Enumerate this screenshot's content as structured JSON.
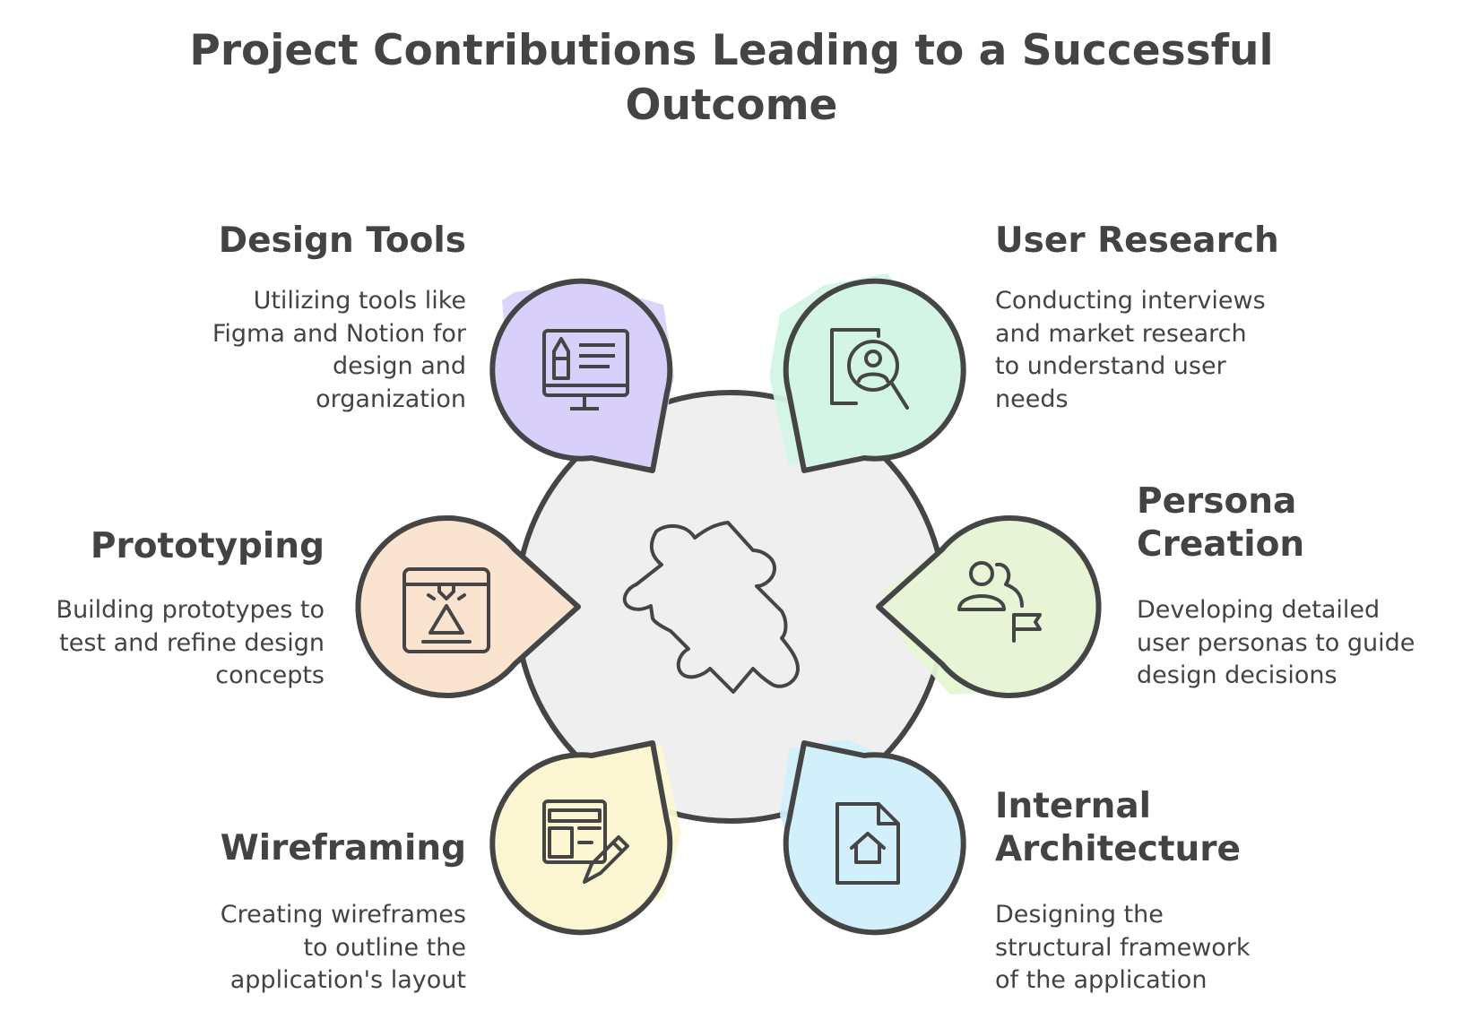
{
  "title": {
    "line1": "Project Contributions Leading to a Successful",
    "line2": "Outcome"
  },
  "center": {
    "icon": "puzzle-piece-icon",
    "color": "#f0f0f0"
  },
  "items": [
    {
      "id": "design-tools",
      "heading": [
        "Design Tools"
      ],
      "description": [
        "Utilizing tools like",
        "Figma and Notion for",
        "design and",
        "organization"
      ],
      "icon": "design-monitor-icon",
      "color": "#d8d0fb"
    },
    {
      "id": "user-research",
      "heading": [
        "User Research"
      ],
      "description": [
        "Conducting interviews",
        "and market research",
        "to understand user",
        "needs"
      ],
      "icon": "user-search-icon",
      "color": "#d3f5e6"
    },
    {
      "id": "persona-creation",
      "heading": [
        "Persona",
        "Creation"
      ],
      "description": [
        "Developing detailed",
        "user personas to guide",
        "design decisions"
      ],
      "icon": "persona-flag-icon",
      "color": "#e7f5d6"
    },
    {
      "id": "internal-architecture",
      "heading": [
        "Internal",
        "Architecture"
      ],
      "description": [
        "Designing the",
        "structural framework",
        "of the application"
      ],
      "icon": "document-home-icon",
      "color": "#d2f0fb"
    },
    {
      "id": "wireframing",
      "heading": [
        "Wireframing"
      ],
      "description": [
        "Creating wireframes",
        "to outline the",
        "application's layout"
      ],
      "icon": "wireframe-pencil-icon",
      "color": "#fcf7d2"
    },
    {
      "id": "prototyping",
      "heading": [
        "Prototyping"
      ],
      "description": [
        "Building prototypes to",
        "test and refine design",
        "concepts"
      ],
      "icon": "3d-printer-icon",
      "color": "#fae3cf"
    }
  ]
}
